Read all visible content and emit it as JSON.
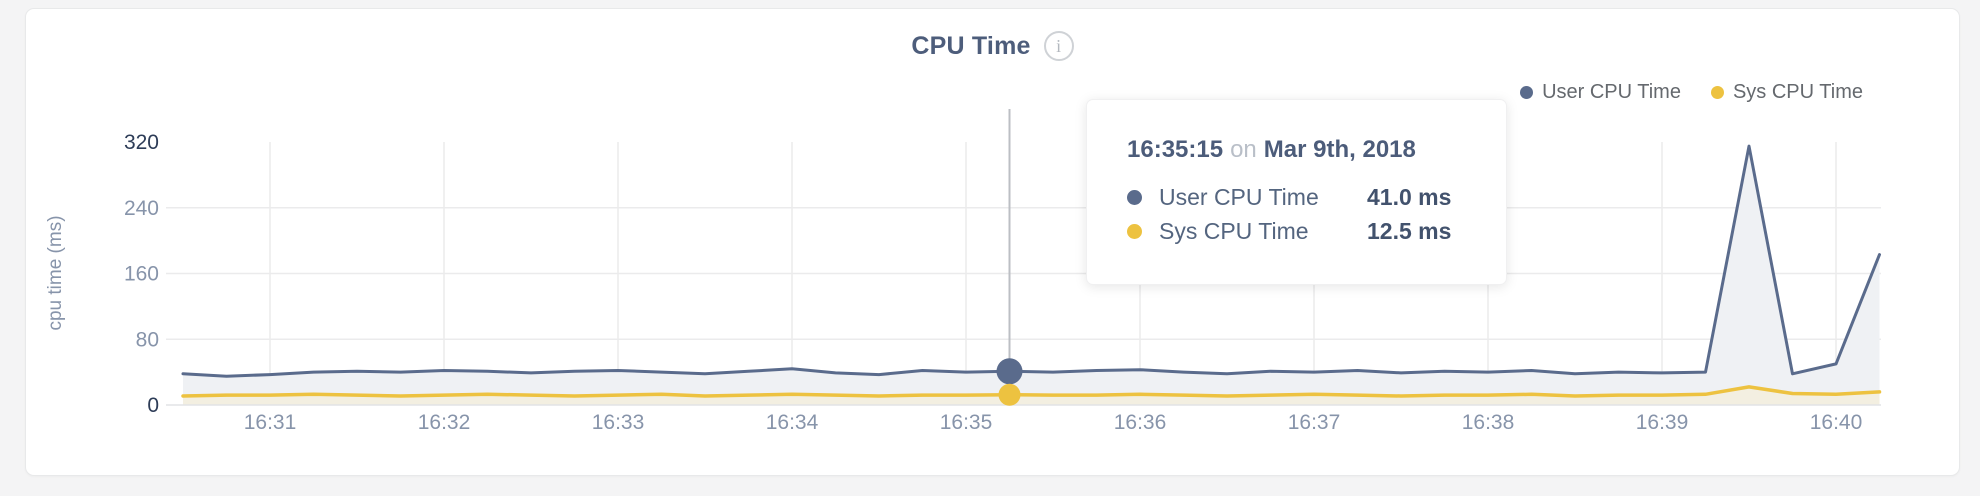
{
  "header": {
    "title": "CPU Time",
    "info_icon": "i"
  },
  "legend": {
    "items": [
      {
        "label": "User CPU Time",
        "color": "#5A6B8C"
      },
      {
        "label": "Sys CPU Time",
        "color": "#EDC240"
      }
    ]
  },
  "tooltip": {
    "time": "16:35:15",
    "separator": "on",
    "date": "Mar 9th, 2018",
    "rows": [
      {
        "label": "User CPU Time",
        "value": "41.0 ms",
        "color": "#5A6B8C"
      },
      {
        "label": "Sys CPU Time",
        "value": "12.5 ms",
        "color": "#EDC240"
      }
    ]
  },
  "colors": {
    "user_line": "#5A6B8C",
    "sys_line": "#EDC240",
    "user_fill": "#EFF1F4",
    "sys_fill": "#F3EFE1",
    "grid": "#ebebec",
    "axis_tick": "#8794aa",
    "axis_tick_emphasis": "#2d3c57",
    "crosshair": "#bcbfc4"
  },
  "chart_data": {
    "type": "area",
    "title": "CPU Time",
    "xlabel": "",
    "ylabel": "cpu time (ms)",
    "ylim": [
      0,
      320
    ],
    "y_ticks": [
      0,
      80,
      160,
      240,
      320
    ],
    "x_ticks": [
      "16:31",
      "16:32",
      "16:33",
      "16:34",
      "16:35",
      "16:36",
      "16:37",
      "16:38",
      "16:39",
      "16:40"
    ],
    "grid": true,
    "legend_position": "top-right",
    "x": [
      "16:30:30",
      "16:30:45",
      "16:31:00",
      "16:31:15",
      "16:31:30",
      "16:31:45",
      "16:32:00",
      "16:32:15",
      "16:32:30",
      "16:32:45",
      "16:33:00",
      "16:33:15",
      "16:33:30",
      "16:33:45",
      "16:34:00",
      "16:34:15",
      "16:34:30",
      "16:34:45",
      "16:35:00",
      "16:35:15",
      "16:35:30",
      "16:35:45",
      "16:36:00",
      "16:36:15",
      "16:36:30",
      "16:36:45",
      "16:37:00",
      "16:37:15",
      "16:37:30",
      "16:37:45",
      "16:38:00",
      "16:38:15",
      "16:38:30",
      "16:38:45",
      "16:39:00",
      "16:39:15",
      "16:39:30",
      "16:39:45",
      "16:40:00",
      "16:40:15"
    ],
    "series": [
      {
        "name": "User CPU Time",
        "color": "#5A6B8C",
        "fill": "#EFF1F4",
        "values": [
          38,
          35,
          37,
          40,
          41,
          40,
          42,
          41,
          39,
          41,
          42,
          40,
          38,
          41,
          44,
          39,
          37,
          42,
          40,
          41,
          40,
          42,
          43,
          40,
          38,
          41,
          40,
          42,
          39,
          41,
          40,
          42,
          38,
          40,
          39,
          40,
          315,
          38,
          50,
          183
        ]
      },
      {
        "name": "Sys CPU Time",
        "color": "#EDC240",
        "fill": "#F3EFE1",
        "values": [
          11,
          12,
          12,
          13,
          12,
          11,
          12,
          13,
          12,
          11,
          12,
          13,
          11,
          12,
          13,
          12,
          11,
          12,
          12,
          12.5,
          12,
          12,
          13,
          12,
          11,
          12,
          13,
          12,
          11,
          12,
          12,
          13,
          11,
          12,
          12,
          13,
          22,
          14,
          13,
          16
        ]
      }
    ],
    "hover": {
      "time": "16:35:15",
      "date": "Mar 9th, 2018",
      "values": {
        "User CPU Time": 41.0,
        "Sys CPU Time": 12.5
      }
    }
  }
}
